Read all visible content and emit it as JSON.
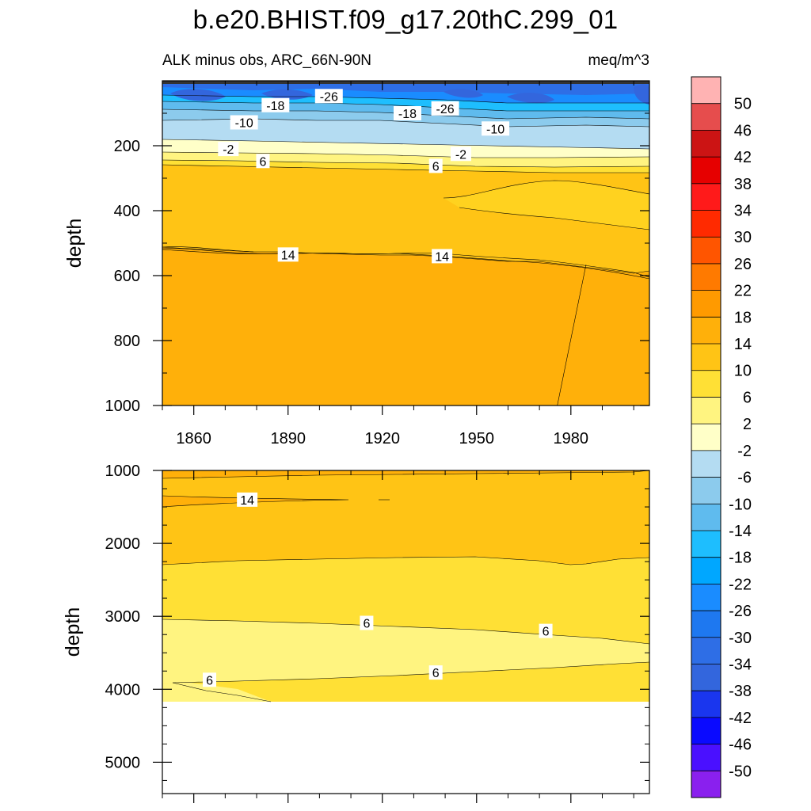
{
  "title": "b.e20.BHIST.f09_g17.20thC.299_01",
  "subtitle_left": "ALK minus obs, ARC_66N-90N",
  "subtitle_right": "meq/m^3",
  "colors": {
    "background": "#ffffff",
    "frame": "#000000",
    "contour_line": "#000000",
    "label_box": "#ffffff"
  },
  "chart_data": [
    {
      "type": "heatmap",
      "name_hint": "upper-panel",
      "xlabel": "",
      "ylabel": "depth",
      "xlim": [
        1850,
        2005
      ],
      "ylim": [
        0,
        1000
      ],
      "y_reversed": true,
      "xticks": [
        1860,
        1890,
        1920,
        1950,
        1980
      ],
      "yticks": [
        200,
        400,
        600,
        800,
        1000
      ],
      "bands": [
        {
          "top": 0,
          "bottom": 80,
          "value": -26
        },
        {
          "top": 80,
          "bottom": 140,
          "value": -18
        },
        {
          "top": 140,
          "bottom": 200,
          "value": -10
        },
        {
          "top": 200,
          "bottom": 240,
          "value": -4
        },
        {
          "top": 240,
          "bottom": 265,
          "value": 0
        },
        {
          "top": 265,
          "bottom": 285,
          "value": 4
        },
        {
          "top": 285,
          "bottom": 560,
          "value": 12
        },
        {
          "top": 560,
          "bottom": 1000,
          "value": 16
        }
      ],
      "contour_labels": [
        {
          "text": "-26",
          "x": 1903,
          "y": 47
        },
        {
          "text": "-18",
          "x": 1886,
          "y": 75
        },
        {
          "text": "-18",
          "x": 1928,
          "y": 100
        },
        {
          "text": "-26",
          "x": 1940,
          "y": 85
        },
        {
          "text": "-10",
          "x": 1876,
          "y": 128
        },
        {
          "text": "-10",
          "x": 1956,
          "y": 147
        },
        {
          "text": "-2",
          "x": 1871,
          "y": 210
        },
        {
          "text": "-2",
          "x": 1945,
          "y": 225
        },
        {
          "text": "6",
          "x": 1882,
          "y": 247
        },
        {
          "text": "6",
          "x": 1937,
          "y": 262
        },
        {
          "text": "14",
          "x": 1890,
          "y": 535
        },
        {
          "text": "14",
          "x": 1939,
          "y": 540
        }
      ]
    },
    {
      "type": "heatmap",
      "name_hint": "lower-panel",
      "xlabel": "",
      "ylabel": "depth",
      "xlim": [
        1850,
        2005
      ],
      "ylim": [
        1000,
        5430
      ],
      "y_reversed": true,
      "xticks": [
        1860,
        1890,
        1920,
        1950,
        1980
      ],
      "yticks": [
        1000,
        2000,
        3000,
        4000,
        5000
      ],
      "no_data_below": 4120,
      "contour_labels": [
        {
          "text": "14",
          "x": 1877,
          "y": 1400
        },
        {
          "text": "6",
          "x": 1915,
          "y": 3090
        },
        {
          "text": "6",
          "x": 1972,
          "y": 3200
        },
        {
          "text": "6",
          "x": 1865,
          "y": 3870
        },
        {
          "text": "6",
          "x": 1937,
          "y": 3770
        }
      ]
    }
  ],
  "colorbar": {
    "levels": [
      "50",
      "46",
      "42",
      "38",
      "34",
      "30",
      "26",
      "22",
      "18",
      "14",
      "10",
      "6",
      "2",
      "-2",
      "-6",
      "-10",
      "-14",
      "-18",
      "-22",
      "-26",
      "-30",
      "-34",
      "-38",
      "-42",
      "-46",
      "-50"
    ],
    "colors": [
      "#ffb3b3",
      "#e64d4d",
      "#cc1414",
      "#e60000",
      "#ff1a1a",
      "#ff2a00",
      "#ff5500",
      "#ff7a00",
      "#ff9a00",
      "#ffb00a",
      "#ffc415",
      "#ffe035",
      "#fff480",
      "#ffffc8",
      "#b4dcf2",
      "#8ccbed",
      "#5fbbee",
      "#1ebefe",
      "#00a7ff",
      "#1a8cff",
      "#1e78f0",
      "#2e6ee6",
      "#3366dd",
      "#1a36ee",
      "#0a0aff",
      "#4a10ff",
      "#8a20ee"
    ]
  }
}
